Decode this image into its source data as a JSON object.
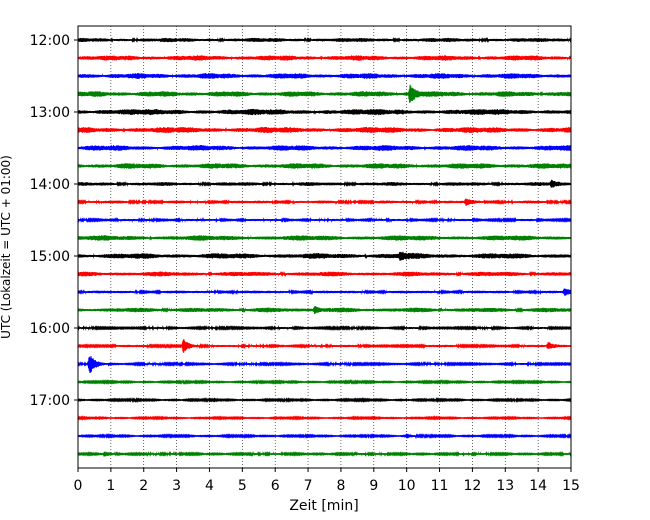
{
  "chart_data": {
    "type": "line",
    "title": "",
    "xlabel": "Zeit  [min]",
    "ylabel": "UTC (Lokalzeit = UTC + 01:00)",
    "xlim": [
      0,
      15
    ],
    "xticks": [
      0,
      1,
      2,
      3,
      4,
      5,
      6,
      7,
      8,
      9,
      10,
      11,
      12,
      13,
      14,
      15
    ],
    "xtick_labels": [
      "0",
      "1",
      "2",
      "3",
      "4",
      "5",
      "6",
      "7",
      "8",
      "9",
      "10",
      "11",
      "12",
      "13",
      "14",
      "15"
    ],
    "yticks": [
      {
        "label": "12:00",
        "row": 0
      },
      {
        "label": "13:00",
        "row": 4
      },
      {
        "label": "14:00",
        "row": 8
      },
      {
        "label": "15:00",
        "row": 12
      },
      {
        "label": "16:00",
        "row": 16
      },
      {
        "label": "17:00",
        "row": 20
      }
    ],
    "grid": "vertical-dotted",
    "row_colors": [
      "#000000",
      "#ff0000",
      "#0000ff",
      "#008000"
    ],
    "traces": [
      {
        "start": "12:00",
        "amplitude": 0.22,
        "color": "#000000"
      },
      {
        "start": "12:15",
        "amplitude": 0.28,
        "color": "#ff0000"
      },
      {
        "start": "12:30",
        "amplitude": 0.3,
        "color": "#0000ff"
      },
      {
        "start": "12:45",
        "amplitude": 0.3,
        "color": "#008000",
        "events": [
          {
            "t": 10.1,
            "amp": 1.0
          }
        ]
      },
      {
        "start": "13:00",
        "amplitude": 0.32,
        "color": "#000000"
      },
      {
        "start": "13:15",
        "amplitude": 0.32,
        "color": "#ff0000"
      },
      {
        "start": "13:30",
        "amplitude": 0.3,
        "color": "#0000ff"
      },
      {
        "start": "13:45",
        "amplitude": 0.3,
        "color": "#008000"
      },
      {
        "start": "14:00",
        "amplitude": 0.2,
        "color": "#000000",
        "events": [
          {
            "t": 14.4,
            "amp": 0.35
          }
        ]
      },
      {
        "start": "14:15",
        "amplitude": 0.15,
        "color": "#ff0000",
        "events": [
          {
            "t": 11.8,
            "amp": 0.3
          }
        ]
      },
      {
        "start": "14:30",
        "amplitude": 0.12,
        "color": "#0000ff"
      },
      {
        "start": "14:45",
        "amplitude": 0.28,
        "color": "#008000"
      },
      {
        "start": "15:00",
        "amplitude": 0.3,
        "color": "#000000",
        "events": [
          {
            "t": 9.8,
            "amp": 0.4
          }
        ]
      },
      {
        "start": "15:15",
        "amplitude": 0.25,
        "color": "#ff0000"
      },
      {
        "start": "15:30",
        "amplitude": 0.15,
        "color": "#0000ff",
        "events": [
          {
            "t": 14.8,
            "amp": 0.35
          }
        ]
      },
      {
        "start": "15:45",
        "amplitude": 0.25,
        "color": "#008000",
        "events": [
          {
            "t": 7.2,
            "amp": 0.4
          }
        ]
      },
      {
        "start": "16:00",
        "amplitude": 0.1,
        "color": "#000000"
      },
      {
        "start": "16:15",
        "amplitude": 0.12,
        "color": "#ff0000",
        "events": [
          {
            "t": 3.2,
            "amp": 0.8
          },
          {
            "t": 14.3,
            "amp": 0.4
          }
        ]
      },
      {
        "start": "16:30",
        "amplitude": 0.1,
        "color": "#0000ff",
        "events": [
          {
            "t": 0.35,
            "amp": 1.1
          }
        ]
      },
      {
        "start": "16:45",
        "amplitude": 0.08,
        "color": "#008000"
      },
      {
        "start": "17:00",
        "amplitude": 0.08,
        "color": "#000000"
      },
      {
        "start": "17:15",
        "amplitude": 0.07,
        "color": "#ff0000"
      },
      {
        "start": "17:30",
        "amplitude": 0.08,
        "color": "#0000ff",
        "events": [
          {
            "t": 10.0,
            "amp": 0.25
          }
        ]
      },
      {
        "start": "17:45",
        "amplitude": 0.1,
        "color": "#008000",
        "events": [
          {
            "t": 0.8,
            "amp": 0.3
          }
        ]
      }
    ]
  }
}
